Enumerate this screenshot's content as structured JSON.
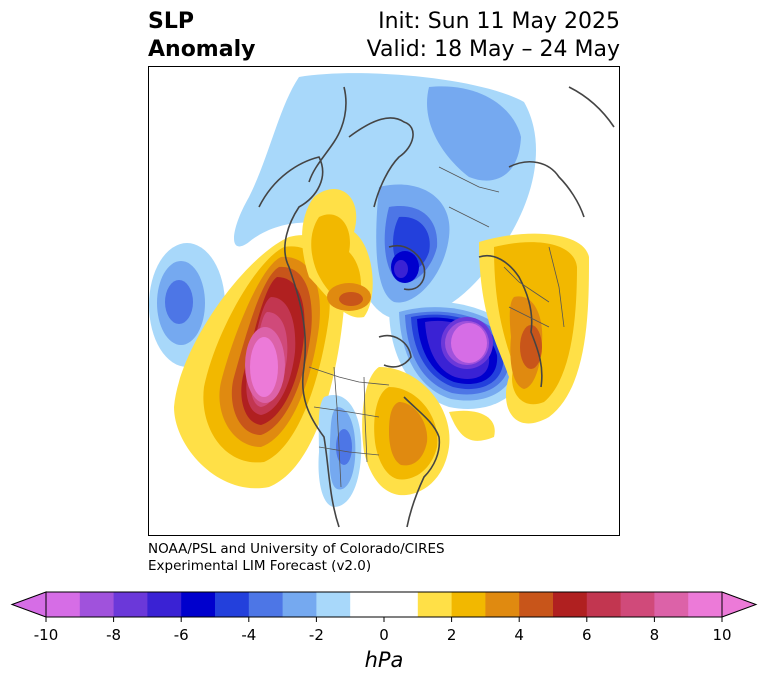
{
  "title": {
    "left_line1": "SLP",
    "left_line2": "Anomaly",
    "right_line1": "Init: Sun 11 May 2025",
    "right_line2": "Valid: 18 May – 24 May"
  },
  "credit": {
    "line1": "NOAA/PSL and University of Colorado/CIRES",
    "line2": "Experimental LIM Forecast (v2.0)"
  },
  "colorbar": {
    "unit": "hPa",
    "tick_labels": [
      "-10",
      "-8",
      "-6",
      "-4",
      "-2",
      "0",
      "2",
      "4",
      "6",
      "8",
      "10"
    ],
    "min": -10,
    "max": 10,
    "extend": "both",
    "colors": [
      "#d66de6",
      "#a052dc",
      "#6b38d9",
      "#3a22d4",
      "#0000cd",
      "#2340dc",
      "#4d76e6",
      "#75a9f0",
      "#a8d8fa",
      "#ffffff",
      "#ffffff",
      "#ffe047",
      "#f2b800",
      "#e08a10",
      "#c8551a",
      "#b02020",
      "#c23650",
      "#d04a7a",
      "#dc62a8",
      "#ec7ad8"
    ],
    "under_color": "#d66de6",
    "over_color": "#ec7ad8"
  },
  "map": {
    "projection": "north-polar-stereographic",
    "variable": "sea-level pressure anomaly",
    "features": [
      {
        "name": "north-pacific-positive-anomaly",
        "sign": "positive",
        "peak_hpa": 10
      },
      {
        "name": "north-atlantic-negative-anomaly",
        "sign": "negative",
        "peak_hpa": -10
      },
      {
        "name": "arctic-negative-anomaly",
        "sign": "negative",
        "peak_hpa": -6
      },
      {
        "name": "far-east-pacific-negative-anomaly",
        "sign": "negative",
        "peak_hpa": -4
      },
      {
        "name": "europe-positive-anomaly",
        "sign": "positive",
        "peak_hpa": 6
      },
      {
        "name": "eastern-north-america-positive-anomaly",
        "sign": "positive",
        "peak_hpa": 6
      },
      {
        "name": "central-us-negative-anomaly",
        "sign": "negative",
        "peak_hpa": -4
      }
    ]
  }
}
